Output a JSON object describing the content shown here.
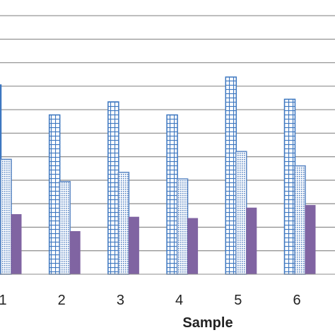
{
  "chart_data": {
    "type": "bar",
    "title": "",
    "xlabel": "Sample",
    "ylabel": "",
    "categories": [
      "1",
      "2",
      "3",
      "4",
      "5",
      "6"
    ],
    "series": [
      {
        "values": [
          14.5,
          12.2,
          13.2,
          12.2,
          15.1,
          13.4
        ]
      },
      {
        "values": [
          8.8,
          7.1,
          7.8,
          7.3,
          9.4,
          8.3
        ]
      },
      {
        "values": [
          4.6,
          3.3,
          4.4,
          4.3,
          5.1,
          5.3
        ]
      }
    ],
    "ylim": [
      0,
      21
    ],
    "grid": true,
    "legend": "none",
    "colors": {
      "series_1_outline": "#3d77c0",
      "series_2_outline": "#5b87c4",
      "series_3_fill": "#8064a2",
      "grid": "#8c8c8c",
      "axis_text": "#222222"
    }
  }
}
